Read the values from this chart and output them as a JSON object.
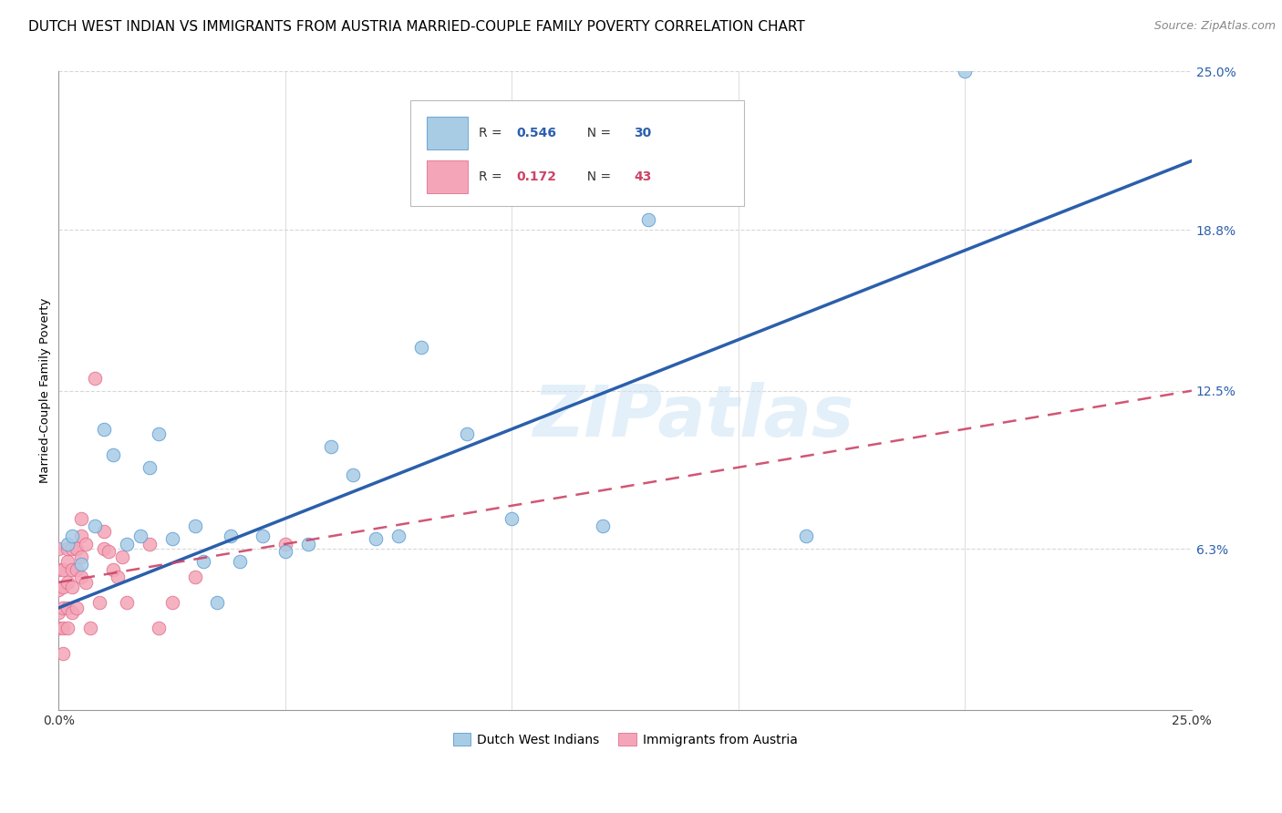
{
  "title": "DUTCH WEST INDIAN VS IMMIGRANTS FROM AUSTRIA MARRIED-COUPLE FAMILY POVERTY CORRELATION CHART",
  "source": "Source: ZipAtlas.com",
  "xlabel": "",
  "ylabel": "Married-Couple Family Poverty",
  "watermark": "ZIPatlas",
  "xmin": 0.0,
  "xmax": 0.25,
  "ymin": 0.0,
  "ymax": 0.25,
  "ytick_vals": [
    0.063,
    0.125,
    0.188,
    0.25
  ],
  "ytick_labels": [
    "6.3%",
    "12.5%",
    "18.8%",
    "25.0%"
  ],
  "xtick_vals": [
    0.0,
    0.05,
    0.1,
    0.15,
    0.2,
    0.25
  ],
  "xtick_labels": [
    "0.0%",
    "",
    "",
    "",
    "",
    "25.0%"
  ],
  "legend_label1": "Dutch West Indians",
  "legend_label2": "Immigrants from Austria",
  "color_blue": "#a8cce4",
  "color_blue_edge": "#5b9bd5",
  "color_blue_line": "#2b5fac",
  "color_pink": "#f4a6b8",
  "color_pink_edge": "#e07090",
  "color_pink_line": "#cc4466",
  "blue_x": [
    0.002,
    0.003,
    0.005,
    0.008,
    0.01,
    0.012,
    0.015,
    0.018,
    0.02,
    0.022,
    0.025,
    0.03,
    0.032,
    0.035,
    0.038,
    0.04,
    0.045,
    0.05,
    0.055,
    0.06,
    0.065,
    0.07,
    0.075,
    0.08,
    0.09,
    0.1,
    0.12,
    0.13,
    0.165,
    0.2
  ],
  "blue_y": [
    0.065,
    0.068,
    0.057,
    0.072,
    0.11,
    0.1,
    0.065,
    0.068,
    0.095,
    0.108,
    0.067,
    0.072,
    0.058,
    0.042,
    0.068,
    0.058,
    0.068,
    0.062,
    0.065,
    0.103,
    0.092,
    0.067,
    0.068,
    0.142,
    0.108,
    0.075,
    0.072,
    0.192,
    0.068,
    0.25
  ],
  "pink_x": [
    0.0,
    0.0,
    0.0,
    0.0,
    0.0,
    0.001,
    0.001,
    0.001,
    0.001,
    0.001,
    0.002,
    0.002,
    0.002,
    0.002,
    0.002,
    0.003,
    0.003,
    0.003,
    0.003,
    0.004,
    0.004,
    0.004,
    0.005,
    0.005,
    0.005,
    0.005,
    0.006,
    0.006,
    0.007,
    0.008,
    0.009,
    0.01,
    0.01,
    0.011,
    0.012,
    0.013,
    0.014,
    0.015,
    0.02,
    0.022,
    0.025,
    0.03,
    0.05
  ],
  "pink_y": [
    0.032,
    0.038,
    0.047,
    0.055,
    0.063,
    0.022,
    0.032,
    0.04,
    0.048,
    0.055,
    0.032,
    0.04,
    0.05,
    0.058,
    0.063,
    0.038,
    0.048,
    0.055,
    0.063,
    0.04,
    0.055,
    0.063,
    0.052,
    0.06,
    0.068,
    0.075,
    0.05,
    0.065,
    0.032,
    0.13,
    0.042,
    0.063,
    0.07,
    0.062,
    0.055,
    0.052,
    0.06,
    0.042,
    0.065,
    0.032,
    0.042,
    0.052,
    0.065
  ],
  "grid_color": "#d8d8d8",
  "background_color": "#ffffff",
  "title_fontsize": 11,
  "label_fontsize": 9.5,
  "tick_fontsize": 10,
  "source_fontsize": 9,
  "blue_line_x0": 0.0,
  "blue_line_x1": 0.25,
  "blue_line_y0": 0.04,
  "blue_line_y1": 0.215,
  "pink_line_x0": 0.0,
  "pink_line_x1": 0.25,
  "pink_line_y0": 0.05,
  "pink_line_y1": 0.125
}
